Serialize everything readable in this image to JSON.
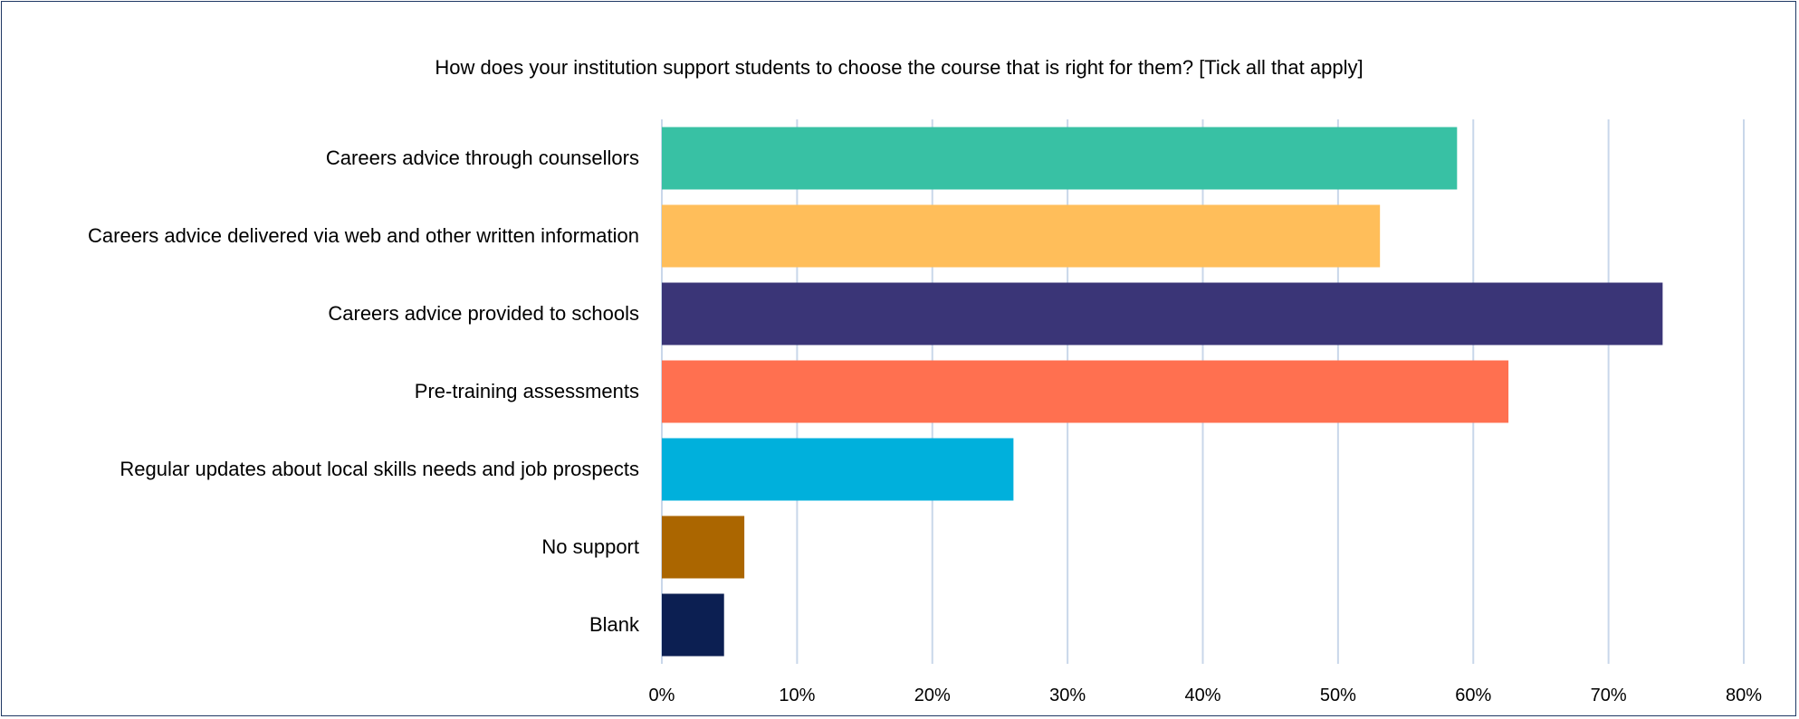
{
  "chart_data": {
    "type": "bar",
    "orientation": "horizontal",
    "title": "How does your institution support students to choose the course that is right for them? [Tick all that apply]",
    "xlabel": "",
    "ylabel": "",
    "categories": [
      "Careers advice through counsellors",
      "Careers advice delivered via web and other written information",
      "Careers advice provided to schools",
      "Pre-training assessments",
      "Regular updates about local skills needs and job prospects",
      "No support",
      "Blank"
    ],
    "values": [
      58.8,
      53.1,
      74.0,
      62.6,
      26.0,
      6.1,
      4.6
    ],
    "value_unit": "%",
    "colors": [
      "#38c1a4",
      "#ffbe5a",
      "#3a3577",
      "#ff7050",
      "#00b0dc",
      "#ab6600",
      "#0c1f52"
    ],
    "xlim": [
      0,
      80
    ],
    "xticks": [
      "0%",
      "10%",
      "20%",
      "30%",
      "40%",
      "50%",
      "60%",
      "70%",
      "80%"
    ],
    "grid": "vertical",
    "legend": "none"
  }
}
